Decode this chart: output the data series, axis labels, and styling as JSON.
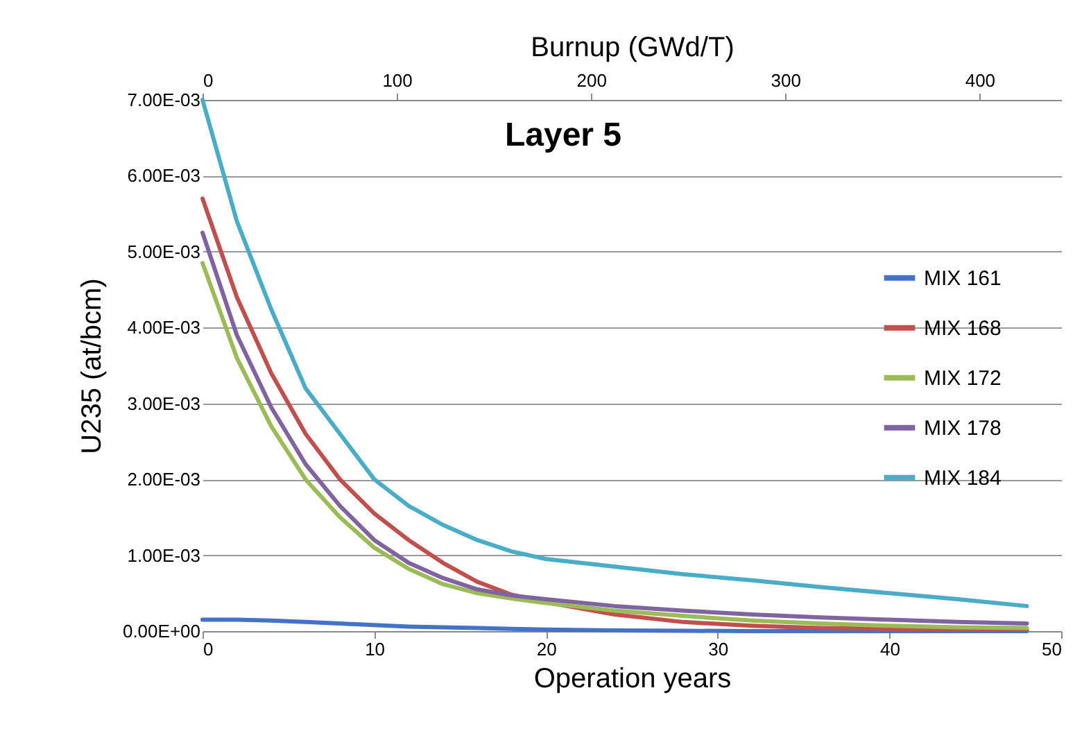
{
  "chart_data": {
    "type": "line",
    "title": "Layer 5",
    "xlabel": "Operation years",
    "ylabel": "U235 (at/bcm)",
    "x2label": "Burnup (GWd/T)",
    "x": [
      0,
      2,
      4,
      6,
      8,
      10,
      12,
      14,
      16,
      18,
      20,
      24,
      28,
      32,
      36,
      40,
      44,
      48
    ],
    "series": [
      {
        "name": "MIX 161",
        "color": "#4472c4",
        "values": [
          0.00015,
          0.00015,
          0.00014,
          0.00012,
          0.0001,
          8e-05,
          6e-05,
          5e-05,
          4e-05,
          3e-05,
          2e-05,
          1e-05,
          5e-06,
          0,
          0,
          0,
          0,
          0
        ]
      },
      {
        "name": "MIX 168",
        "color": "#c0504d",
        "values": [
          0.0057,
          0.0044,
          0.0034,
          0.0026,
          0.002,
          0.00155,
          0.0012,
          0.0009,
          0.00065,
          0.00048,
          0.00038,
          0.00022,
          0.00012,
          7e-05,
          4e-05,
          3e-05,
          2e-05,
          2e-05
        ]
      },
      {
        "name": "MIX 172",
        "color": "#9bbb59",
        "values": [
          0.00485,
          0.0036,
          0.0027,
          0.002,
          0.0015,
          0.0011,
          0.00082,
          0.00062,
          0.0005,
          0.00043,
          0.00037,
          0.00027,
          0.0002,
          0.00014,
          0.0001,
          7e-05,
          5e-05,
          4e-05
        ]
      },
      {
        "name": "MIX 178",
        "color": "#8064a2",
        "values": [
          0.00525,
          0.0039,
          0.00295,
          0.0022,
          0.00165,
          0.0012,
          0.0009,
          0.0007,
          0.00055,
          0.00047,
          0.00042,
          0.00033,
          0.00027,
          0.00022,
          0.00018,
          0.00015,
          0.00012,
          0.0001
        ]
      },
      {
        "name": "MIX 184",
        "color": "#4bacc6",
        "values": [
          0.007,
          0.0054,
          0.00424,
          0.0032,
          0.0026,
          0.002,
          0.00165,
          0.0014,
          0.0012,
          0.00105,
          0.00095,
          0.00085,
          0.00075,
          0.00067,
          0.00058,
          0.0005,
          0.00042,
          0.00033
        ]
      }
    ],
    "xlim": [
      0,
      50
    ],
    "xticks": [
      0,
      10,
      20,
      30,
      40,
      50
    ],
    "x2lim": [
      0,
      442
    ],
    "x2ticks": [
      0,
      100,
      200,
      300,
      400
    ],
    "ylim": [
      0,
      0.007
    ],
    "yticks": [
      {
        "value": 0,
        "label": "0.00E+00"
      },
      {
        "value": 0.001,
        "label": "1.00E-03"
      },
      {
        "value": 0.002,
        "label": "2.00E-03"
      },
      {
        "value": 0.003,
        "label": "3.00E-03"
      },
      {
        "value": 0.004,
        "label": "4.00E-03"
      },
      {
        "value": 0.005,
        "label": "5.00E-03"
      },
      {
        "value": 0.006,
        "label": "6.00E-03"
      },
      {
        "value": 0.007,
        "label": "7.00E-03"
      }
    ],
    "grid": "y",
    "legend": "right",
    "marker": "none",
    "line_style": "solid"
  }
}
